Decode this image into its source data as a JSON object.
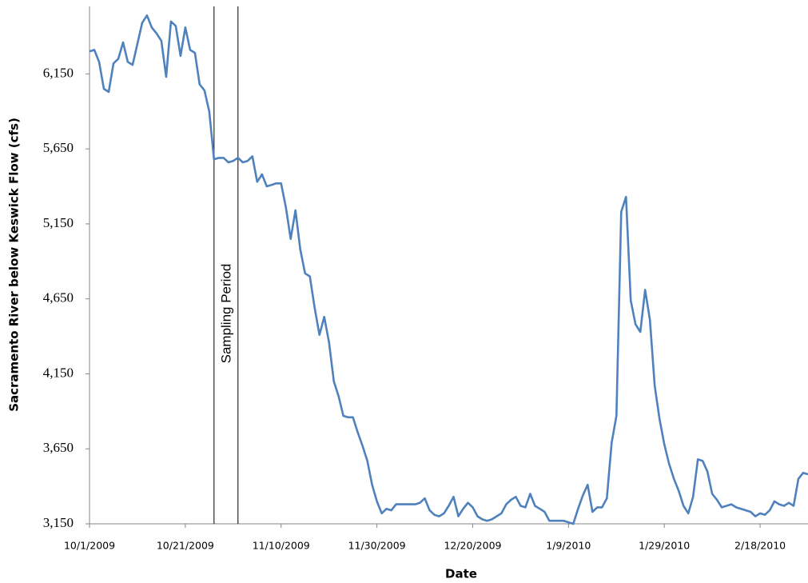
{
  "chart_data": {
    "type": "line",
    "xlabel": "Date",
    "ylabel": "Sacramento River below Keswick Flow  (cfs)",
    "x": [
      "10/1/2009",
      "10/2/2009",
      "10/3/2009",
      "10/4/2009",
      "10/5/2009",
      "10/6/2009",
      "10/7/2009",
      "10/8/2009",
      "10/9/2009",
      "10/10/2009",
      "10/11/2009",
      "10/12/2009",
      "10/13/2009",
      "10/14/2009",
      "10/15/2009",
      "10/16/2009",
      "10/17/2009",
      "10/18/2009",
      "10/19/2009",
      "10/20/2009",
      "10/21/2009",
      "10/22/2009",
      "10/23/2009",
      "10/24/2009",
      "10/25/2009",
      "10/26/2009",
      "10/27/2009",
      "10/28/2009",
      "10/29/2009",
      "10/30/2009",
      "10/31/2009",
      "11/1/2009",
      "11/2/2009",
      "11/3/2009",
      "11/4/2009",
      "11/5/2009",
      "11/6/2009",
      "11/7/2009",
      "11/8/2009",
      "11/9/2009",
      "11/10/2009",
      "11/11/2009",
      "11/12/2009",
      "11/13/2009",
      "11/14/2009",
      "11/15/2009",
      "11/16/2009",
      "11/17/2009",
      "11/18/2009",
      "11/19/2009",
      "11/20/2009",
      "11/21/2009",
      "11/22/2009",
      "11/23/2009",
      "11/24/2009",
      "11/25/2009",
      "11/26/2009",
      "11/27/2009",
      "11/28/2009",
      "11/29/2009",
      "11/30/2009",
      "12/1/2009",
      "12/2/2009",
      "12/3/2009",
      "12/4/2009",
      "12/5/2009",
      "12/6/2009",
      "12/7/2009",
      "12/8/2009",
      "12/9/2009",
      "12/10/2009",
      "12/11/2009",
      "12/12/2009",
      "12/13/2009",
      "12/14/2009",
      "12/15/2009",
      "12/16/2009",
      "12/17/2009",
      "12/18/2009",
      "12/19/2009",
      "12/20/2009",
      "12/21/2009",
      "12/22/2009",
      "12/23/2009",
      "12/24/2009",
      "12/25/2009",
      "12/26/2009",
      "12/27/2009",
      "12/28/2009",
      "12/29/2009",
      "12/30/2009",
      "12/31/2009",
      "1/1/2010",
      "1/2/2010",
      "1/3/2010",
      "1/4/2010",
      "1/5/2010",
      "1/6/2010",
      "1/7/2010",
      "1/8/2010",
      "1/9/2010",
      "1/10/2010",
      "1/11/2010",
      "1/12/2010",
      "1/13/2010",
      "1/14/2010",
      "1/15/2010",
      "1/16/2010",
      "1/17/2010",
      "1/18/2010",
      "1/19/2010",
      "1/20/2010",
      "1/21/2010",
      "1/22/2010",
      "1/23/2010",
      "1/24/2010",
      "1/25/2010",
      "1/26/2010",
      "1/27/2010",
      "1/28/2010",
      "1/29/2010",
      "1/30/2010",
      "1/31/2010",
      "2/1/2010",
      "2/2/2010",
      "2/3/2010",
      "2/4/2010",
      "2/5/2010",
      "2/6/2010",
      "2/7/2010",
      "2/8/2010",
      "2/9/2010",
      "2/10/2010",
      "2/11/2010",
      "2/12/2010",
      "2/13/2010",
      "2/14/2010",
      "2/15/2010",
      "2/16/2010",
      "2/17/2010",
      "2/18/2010",
      "2/19/2010",
      "2/20/2010",
      "2/21/2010",
      "2/22/2010",
      "2/23/2010",
      "2/24/2010",
      "2/25/2010",
      "2/26/2010",
      "2/27/2010",
      "2/28/2010"
    ],
    "series": [
      {
        "name": "Sacramento River below Keswick Flow",
        "color": "#4f81bd",
        "values": [
          6300,
          6310,
          6230,
          6050,
          6030,
          6220,
          6250,
          6360,
          6230,
          6210,
          6350,
          6490,
          6540,
          6460,
          6420,
          6370,
          6130,
          6500,
          6470,
          6270,
          6460,
          6310,
          6290,
          6080,
          6040,
          5900,
          5580,
          5590,
          5590,
          5560,
          5570,
          5590,
          5560,
          5570,
          5600,
          5430,
          5480,
          5400,
          5410,
          5420,
          5420,
          5260,
          5050,
          5240,
          4980,
          4820,
          4800,
          4590,
          4410,
          4530,
          4360,
          4100,
          4000,
          3870,
          3860,
          3860,
          3760,
          3670,
          3570,
          3410,
          3300,
          3220,
          3250,
          3240,
          3280,
          3280,
          3280,
          3280,
          3280,
          3290,
          3320,
          3240,
          3210,
          3200,
          3220,
          3270,
          3330,
          3200,
          3250,
          3290,
          3260,
          3200,
          3180,
          3170,
          3180,
          3200,
          3220,
          3280,
          3310,
          3330,
          3270,
          3260,
          3350,
          3270,
          3250,
          3230,
          3170,
          3170,
          3170,
          3170,
          3160,
          3150,
          3250,
          3340,
          3410,
          3230,
          3260,
          3260,
          3320,
          3690,
          3870,
          5230,
          5330,
          4640,
          4480,
          4430,
          4710,
          4510,
          4070,
          3850,
          3680,
          3550,
          3450,
          3370,
          3270,
          3220,
          3330,
          3580,
          3570,
          3500,
          3350,
          3310,
          3260,
          3270,
          3280,
          3260,
          3250,
          3240,
          3230,
          3200,
          3220,
          3210,
          3240,
          3300,
          3280,
          3270,
          3290,
          3270,
          3450,
          3490,
          3480
        ]
      }
    ],
    "xlim": [
      "10/1/2009",
      "2/28/2010"
    ],
    "xticks": [
      "10/1/2009",
      "10/21/2009",
      "11/10/2009",
      "11/30/2009",
      "12/20/2009",
      "1/9/2010",
      "1/29/2010",
      "2/18/2010"
    ],
    "ylim": [
      3150,
      6600
    ],
    "yticks": [
      {
        "value": 3150,
        "label": "3,150"
      },
      {
        "value": 3650,
        "label": "3,650"
      },
      {
        "value": 4150,
        "label": "4,150"
      },
      {
        "value": 4650,
        "label": "4,650"
      },
      {
        "value": 5150,
        "label": "5,150"
      },
      {
        "value": 5650,
        "label": "5,650"
      },
      {
        "value": 6150,
        "label": "6,150"
      }
    ],
    "grid": false,
    "annotations": [
      {
        "text": "Sampling Period",
        "x_start": "10/27/2009",
        "x_end": "11/1/2009"
      }
    ]
  }
}
